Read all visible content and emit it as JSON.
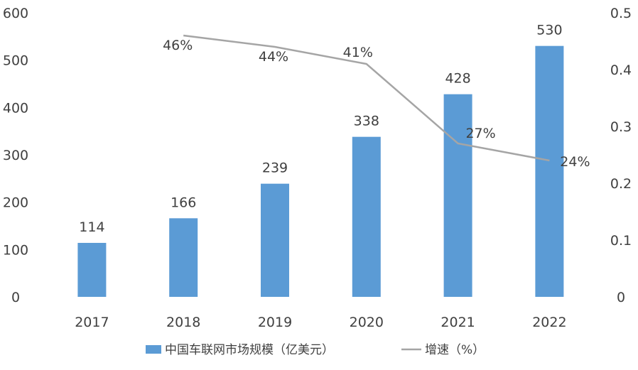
{
  "chart_data": {
    "type": "bar+line",
    "categories": [
      "2017",
      "2018",
      "2019",
      "2020",
      "2021",
      "2022"
    ],
    "series": [
      {
        "name": "中国车联网市场规模（亿美元）",
        "type": "bar",
        "axis": "left",
        "color": "#5B9BD5",
        "values": [
          114,
          166,
          239,
          338,
          428,
          530
        ],
        "labels": [
          "114",
          "166",
          "239",
          "338",
          "428",
          "530"
        ]
      },
      {
        "name": "增速（%）",
        "type": "line",
        "axis": "right",
        "color": "#A5A5A5",
        "x": [
          "2018",
          "2019",
          "2020",
          "2021",
          "2022"
        ],
        "values": [
          0.46,
          0.44,
          0.41,
          0.27,
          0.24
        ],
        "labels": [
          "46%",
          "44%",
          "41%",
          "27%",
          "24%"
        ]
      }
    ],
    "left_axis": {
      "ylim": [
        0,
        600
      ],
      "ticks": [
        "0",
        "100",
        "200",
        "300",
        "400",
        "500",
        "600"
      ]
    },
    "right_axis": {
      "ylim": [
        0,
        0.5
      ],
      "ticks": [
        "0",
        "0.1",
        "0.2",
        "0.3",
        "0.4",
        "0.5"
      ]
    },
    "grid": false,
    "legend": "bottom"
  }
}
